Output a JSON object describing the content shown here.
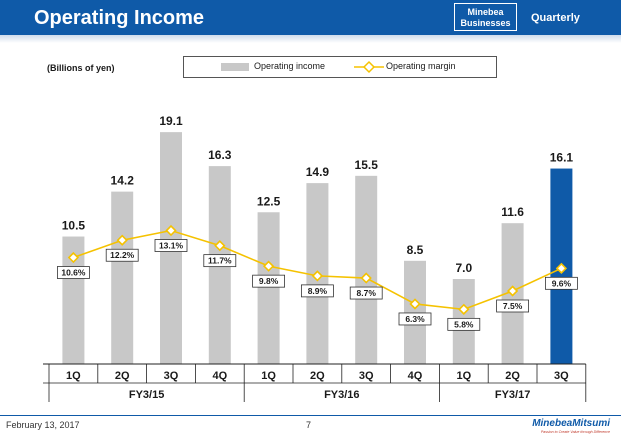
{
  "header": {
    "title": "Operating Income",
    "badge_line1": "Minebea",
    "badge_line2": "Businesses",
    "period": "Quarterly"
  },
  "units": "(Billions of yen)",
  "legend": {
    "bar_label": "Operating income",
    "line_label": "Operating margin"
  },
  "colors": {
    "header_blue": "#0f5aa8",
    "bar_gray": "#c8c8c8",
    "bar_highlight": "#0f5aa8",
    "margin_line": "#f5c200"
  },
  "chart_data": {
    "type": "bar",
    "categories": [
      "1Q",
      "2Q",
      "3Q",
      "4Q",
      "1Q",
      "2Q",
      "3Q",
      "4Q",
      "1Q",
      "2Q",
      "3Q"
    ],
    "groups": [
      {
        "label": "FY3/15",
        "count": 4
      },
      {
        "label": "FY3/16",
        "count": 4
      },
      {
        "label": "FY3/17",
        "count": 3
      }
    ],
    "series": [
      {
        "name": "Operating income",
        "type": "bar",
        "values": [
          10.5,
          14.2,
          19.1,
          16.3,
          12.5,
          14.9,
          15.5,
          8.5,
          7.0,
          11.6,
          16.1
        ],
        "labels": [
          "10.5",
          "14.2",
          "19.1",
          "16.3",
          "12.5",
          "14.9",
          "15.5",
          "8.5",
          "7.0",
          "11.6",
          "16.1"
        ],
        "highlight_index": 10
      },
      {
        "name": "Operating margin",
        "type": "line",
        "values": [
          10.6,
          12.2,
          13.1,
          11.7,
          9.8,
          8.9,
          8.7,
          6.3,
          5.8,
          7.5,
          9.6
        ],
        "labels": [
          "10.6%",
          "12.2%",
          "13.1%",
          "11.7%",
          "9.8%",
          "8.9%",
          "8.7%",
          "6.3%",
          "5.8%",
          "7.5%",
          "9.6%"
        ]
      }
    ]
  },
  "footer": {
    "date": "February 13, 2017",
    "page": "7",
    "logo_name": "MinebeaMitsumi",
    "logo_tagline": "Passion to Create Value through Difference"
  }
}
